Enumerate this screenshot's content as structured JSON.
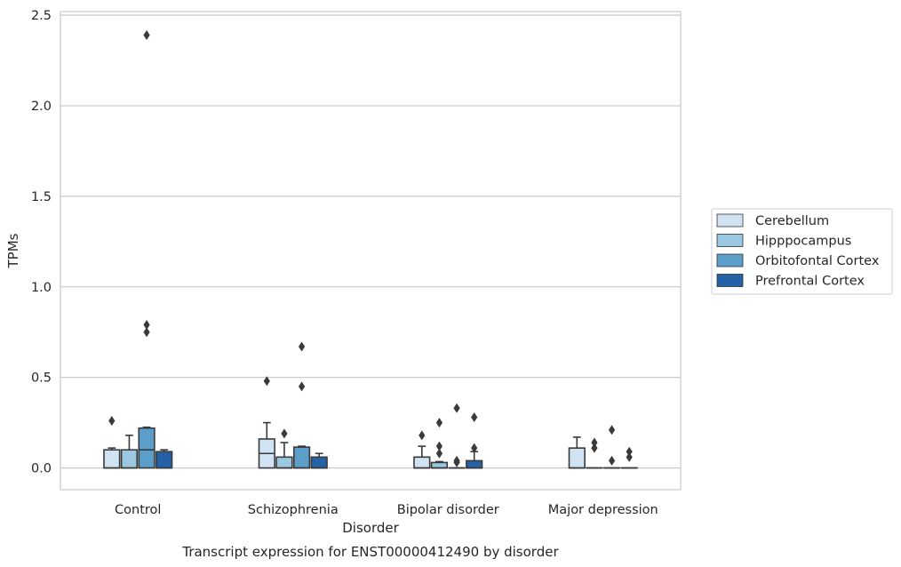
{
  "chart_data": {
    "type": "boxplot",
    "caption": "Transcript expression for ENST00000412490 by disorder",
    "xlabel": "Disorder",
    "ylabel": "TPMs",
    "ylim": [
      -0.12,
      2.52
    ],
    "yticks": [
      0.0,
      0.5,
      1.0,
      1.5,
      2.0,
      2.5
    ],
    "ytick_labels": [
      "0.0",
      "0.5",
      "1.0",
      "1.5",
      "2.0",
      "2.5"
    ],
    "grid": true,
    "legend": {
      "position": "right",
      "entries": [
        "Cerebellum",
        "Hipppocampus",
        "Orbitofontal Cortex",
        "Prefrontal Cortex"
      ]
    },
    "colors": [
      "#d1e2f2",
      "#9ac8e0",
      "#5a9ec9",
      "#2462a7"
    ],
    "categories": [
      "Control",
      "Schizophrenia",
      "Bipolar disorder",
      "Major depression"
    ],
    "series": [
      {
        "name": "Cerebellum",
        "boxes": [
          {
            "whislo": 0.0,
            "q1": 0.0,
            "med": 0.0,
            "q3": 0.1,
            "whishi": 0.11,
            "fliers": [
              0.26
            ]
          },
          {
            "whislo": 0.0,
            "q1": 0.0,
            "med": 0.08,
            "q3": 0.16,
            "whishi": 0.25,
            "fliers": [
              0.48
            ]
          },
          {
            "whislo": 0.0,
            "q1": 0.0,
            "med": 0.0,
            "q3": 0.06,
            "whishi": 0.12,
            "fliers": [
              0.18
            ]
          },
          {
            "whislo": 0.0,
            "q1": 0.0,
            "med": 0.0,
            "q3": 0.11,
            "whishi": 0.17,
            "fliers": []
          }
        ]
      },
      {
        "name": "Hipppocampus",
        "boxes": [
          {
            "whislo": 0.0,
            "q1": 0.0,
            "med": 0.0,
            "q3": 0.1,
            "whishi": 0.18,
            "fliers": []
          },
          {
            "whislo": 0.0,
            "q1": 0.0,
            "med": 0.0,
            "q3": 0.06,
            "whishi": 0.14,
            "fliers": [
              0.19
            ]
          },
          {
            "whislo": 0.0,
            "q1": 0.0,
            "med": 0.0,
            "q3": 0.03,
            "whishi": 0.035,
            "fliers": [
              0.08,
              0.12,
              0.25
            ]
          },
          {
            "whislo": 0.0,
            "q1": 0.0,
            "med": 0.0,
            "q3": 0.0,
            "whishi": 0.0,
            "fliers": [
              0.11,
              0.14
            ]
          }
        ]
      },
      {
        "name": "Orbitofontal Cortex",
        "boxes": [
          {
            "whislo": 0.0,
            "q1": 0.0,
            "med": 0.1,
            "q3": 0.22,
            "whishi": 0.225,
            "fliers": [
              0.75,
              0.79,
              2.39
            ]
          },
          {
            "whislo": 0.0,
            "q1": 0.0,
            "med": 0.0,
            "q3": 0.115,
            "whishi": 0.12,
            "fliers": [
              0.45,
              0.67
            ]
          },
          {
            "whislo": 0.0,
            "q1": 0.0,
            "med": 0.0,
            "q3": 0.0,
            "whishi": 0.0,
            "fliers": [
              0.03,
              0.04,
              0.33
            ]
          },
          {
            "whislo": 0.0,
            "q1": 0.0,
            "med": 0.0,
            "q3": 0.0,
            "whishi": 0.0,
            "fliers": [
              0.04,
              0.21
            ]
          }
        ]
      },
      {
        "name": "Prefrontal Cortex",
        "boxes": [
          {
            "whislo": 0.0,
            "q1": 0.0,
            "med": 0.0,
            "q3": 0.09,
            "whishi": 0.1,
            "fliers": []
          },
          {
            "whislo": 0.0,
            "q1": 0.0,
            "med": 0.0,
            "q3": 0.06,
            "whishi": 0.08,
            "fliers": []
          },
          {
            "whislo": 0.0,
            "q1": 0.0,
            "med": 0.0,
            "q3": 0.04,
            "whishi": 0.09,
            "fliers": [
              0.11,
              0.28
            ]
          },
          {
            "whislo": 0.0,
            "q1": 0.0,
            "med": 0.0,
            "q3": 0.0,
            "whishi": 0.0,
            "fliers": [
              0.06,
              0.09
            ]
          }
        ]
      }
    ]
  }
}
